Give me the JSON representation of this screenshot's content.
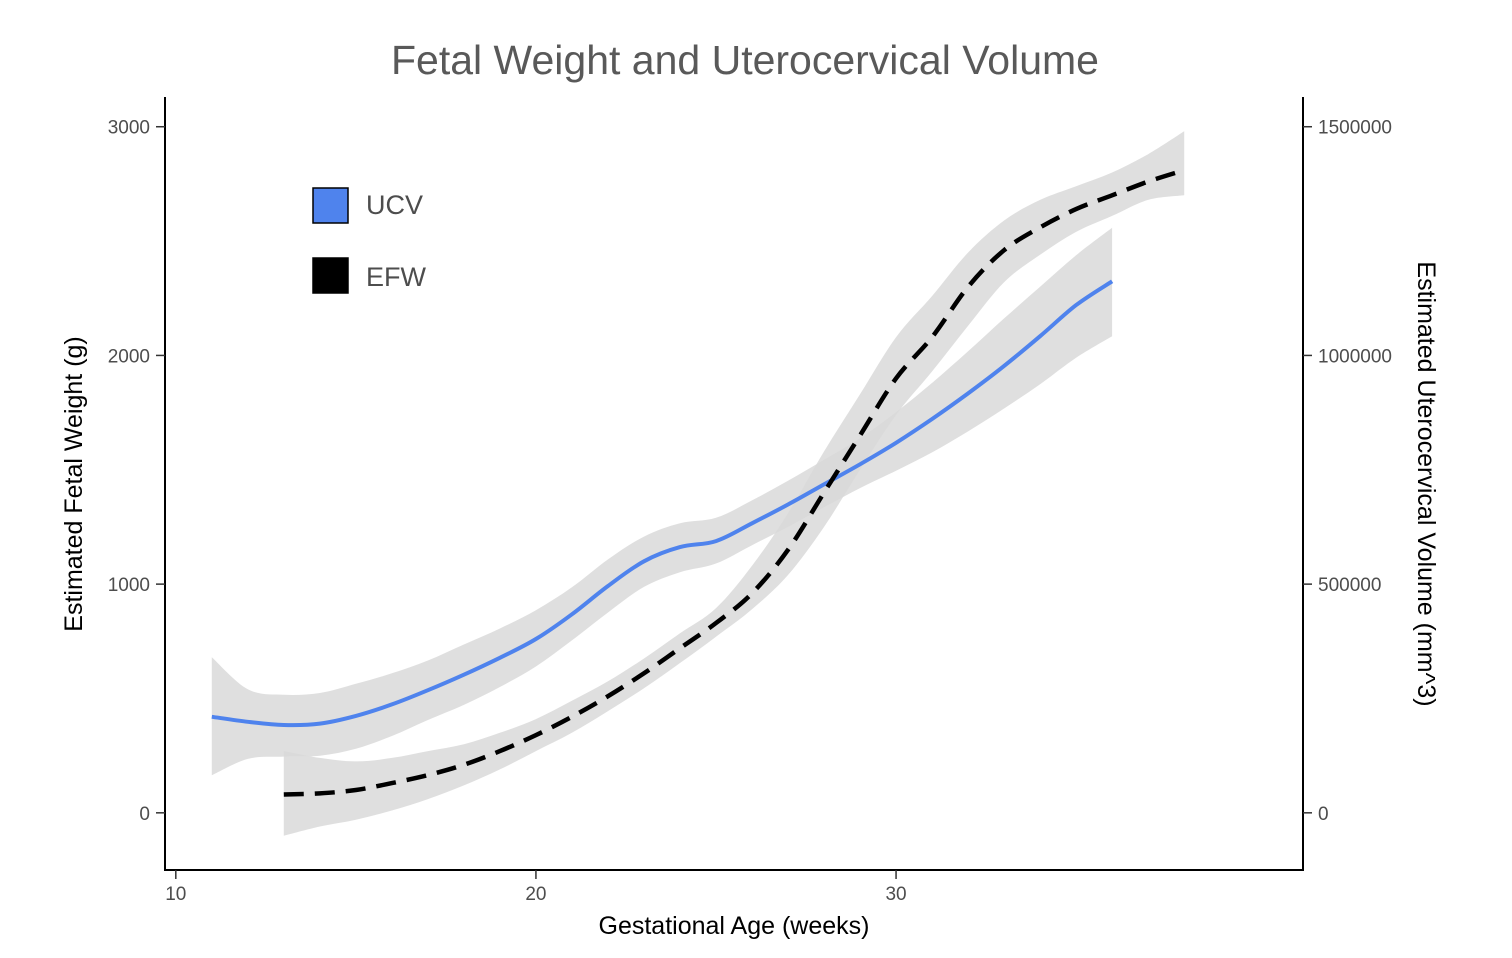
{
  "chart_data": {
    "type": "line",
    "title": "Fetal Weight and Uterocervical Volume",
    "xlabel": "Gestational Age (weeks)",
    "ylabel_left": "Estimated Fetal Weight (g)",
    "ylabel_right": "Estimated Uterocervical Volume (mm^3)",
    "xlim": [
      9.7,
      41.3
    ],
    "ylim_left": [
      -250,
      3130
    ],
    "ylim_right": [
      -125000,
      1565000
    ],
    "x_ticks": [
      10,
      20,
      30
    ],
    "x_tick_labels": [
      "10",
      "20",
      "30"
    ],
    "y_left_ticks": [
      0,
      1000,
      2000,
      3000
    ],
    "y_left_tick_labels": [
      "0",
      "1000",
      "2000",
      "3000"
    ],
    "y_right_ticks": [
      0,
      500000,
      1000000,
      1500000
    ],
    "y_right_tick_labels": [
      "0",
      "500000",
      "1000000",
      "1500000"
    ],
    "legend": [
      {
        "label": "UCV",
        "color": "#4f83ed"
      },
      {
        "label": "EFW",
        "color": "#000000"
      }
    ],
    "legend_position": "top-left",
    "band_color": "#d9d9d9",
    "series": [
      {
        "name": "UCV",
        "axis": "right",
        "style": "solid",
        "color": "#4f83ed",
        "x": [
          11,
          12,
          13,
          14,
          15,
          16,
          17,
          18,
          19,
          20,
          21,
          22,
          23,
          24,
          25,
          26,
          27,
          28,
          29,
          30,
          31,
          32,
          33,
          34,
          35,
          36
        ],
        "y": [
          210000,
          199000,
          192000,
          195000,
          212000,
          237000,
          268000,
          302000,
          339000,
          380000,
          434000,
          496000,
          550000,
          581000,
          594000,
          633000,
          674000,
          718000,
          762000,
          809000,
          861000,
          917000,
          977000,
          1042000,
          1110000,
          1162000
        ],
        "lower": [
          82000,
          118000,
          123000,
          125000,
          140000,
          168000,
          203000,
          236000,
          275000,
          320000,
          377000,
          438000,
          494000,
          526000,
          545000,
          585000,
          625000,
          668000,
          710000,
          748000,
          788000,
          834000,
          884000,
          937000,
          995000,
          1042000
        ],
        "upper": [
          340000,
          270000,
          258000,
          262000,
          282000,
          305000,
          333000,
          368000,
          403000,
          443000,
          493000,
          554000,
          604000,
          633000,
          645000,
          683000,
          726000,
          772000,
          819000,
          876000,
          940000,
          1009000,
          1081000,
          1150000,
          1219000,
          1279000
        ]
      },
      {
        "name": "EFW",
        "axis": "left",
        "style": "dashed",
        "color": "#000000",
        "x": [
          13,
          14,
          15,
          16,
          17,
          18,
          19,
          20,
          21,
          22,
          23,
          24,
          25,
          26,
          27,
          28,
          29,
          30,
          31,
          32,
          33,
          34,
          35,
          36,
          37,
          38
        ],
        "y": [
          80,
          85,
          100,
          130,
          165,
          210,
          270,
          340,
          420,
          510,
          610,
          720,
          830,
          960,
          1150,
          1400,
          1650,
          1900,
          2080,
          2300,
          2460,
          2560,
          2640,
          2700,
          2760,
          2810
        ],
        "lower": [
          -100,
          -60,
          -30,
          10,
          60,
          120,
          190,
          270,
          350,
          445,
          545,
          655,
          770,
          890,
          1040,
          1250,
          1500,
          1740,
          1930,
          2130,
          2320,
          2440,
          2540,
          2610,
          2680,
          2700
        ],
        "upper": [
          270,
          240,
          225,
          240,
          270,
          300,
          350,
          410,
          490,
          575,
          675,
          785,
          895,
          1080,
          1310,
          1580,
          1830,
          2080,
          2260,
          2450,
          2590,
          2680,
          2740,
          2800,
          2880,
          2980
        ]
      }
    ]
  }
}
